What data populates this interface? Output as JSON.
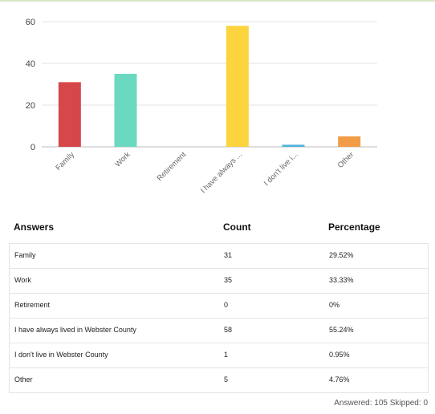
{
  "chart_data": {
    "type": "bar",
    "categories": [
      "Family",
      "Work",
      "Retirement",
      "I have always ...",
      "I don't live i...",
      "Other"
    ],
    "values": [
      31,
      35,
      0,
      58,
      1,
      5
    ],
    "colors": [
      "#d6474a",
      "#6bd9c0",
      "#9ba1a8",
      "#fcd43e",
      "#4fb3dc",
      "#f29c47"
    ],
    "ylim": [
      0,
      60
    ],
    "yticks": [
      0,
      20,
      40,
      60
    ],
    "grid": true,
    "title": "",
    "xlabel": "",
    "ylabel": ""
  },
  "table": {
    "headers": {
      "answers": "Answers",
      "count": "Count",
      "percentage": "Percentage"
    },
    "rows": [
      {
        "answer": "Family",
        "count": "31",
        "percentage": "29.52%"
      },
      {
        "answer": "Work",
        "count": "35",
        "percentage": "33.33%"
      },
      {
        "answer": "Retirement",
        "count": "0",
        "percentage": "0%"
      },
      {
        "answer": "I have always lived in Webster County",
        "count": "58",
        "percentage": "55.24%"
      },
      {
        "answer": "I don't live in Webster County",
        "count": "1",
        "percentage": "0.95%"
      },
      {
        "answer": "Other",
        "count": "5",
        "percentage": "4.76%"
      }
    ]
  },
  "summary": {
    "answered_label": "Answered:",
    "answered": "105",
    "skipped_label": "Skipped:",
    "skipped": "0"
  }
}
